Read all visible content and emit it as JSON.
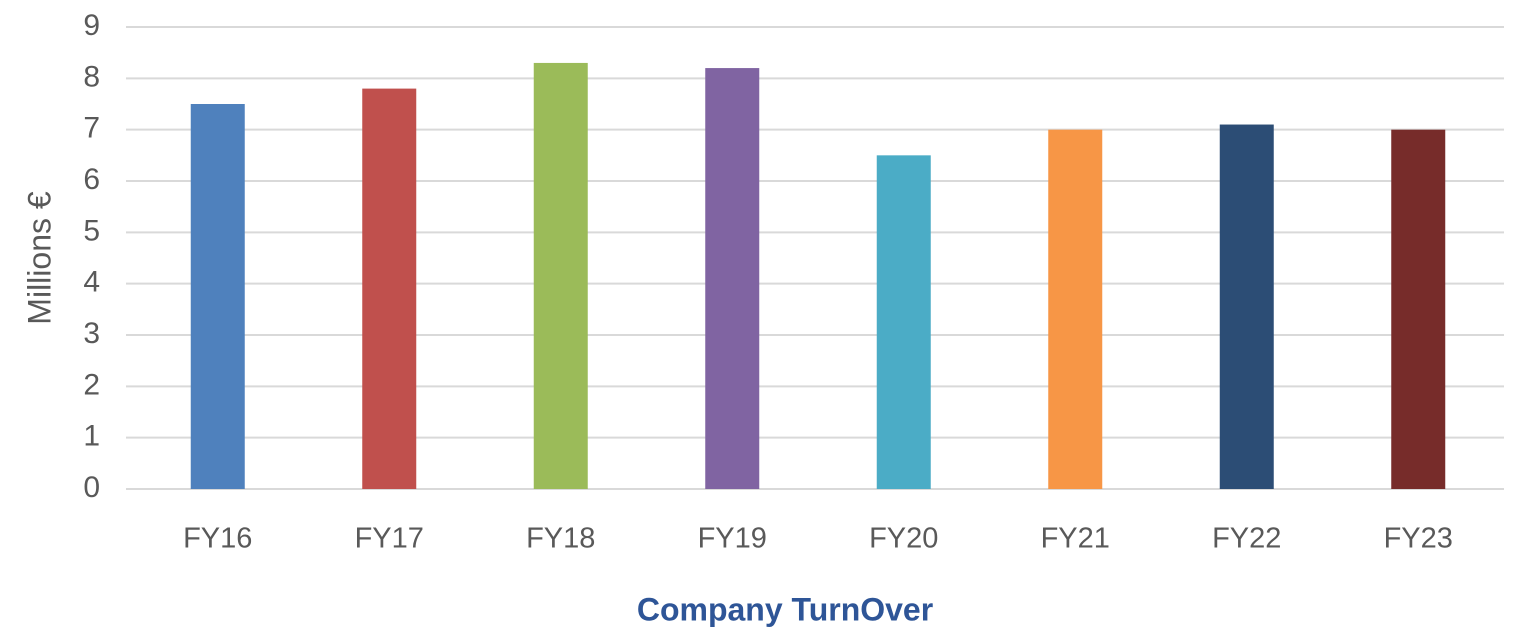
{
  "chart_data": {
    "type": "bar",
    "x_label": "Company TurnOver",
    "y_label": "Millions €",
    "categories": [
      "FY16",
      "FY17",
      "FY18",
      "FY19",
      "FY20",
      "FY21",
      "FY22",
      "FY23"
    ],
    "values": [
      7.5,
      7.8,
      8.3,
      8.2,
      6.5,
      7.0,
      7.1,
      7.0
    ],
    "colors": [
      "#4f81bd",
      "#c0504d",
      "#9bbb59",
      "#8064a2",
      "#4bacc6",
      "#f79646",
      "#2c4d75",
      "#772c2a"
    ],
    "ylim": [
      0,
      9
    ],
    "yticks": [
      0,
      1,
      2,
      3,
      4,
      5,
      6,
      7,
      8,
      9
    ],
    "grid": true
  }
}
